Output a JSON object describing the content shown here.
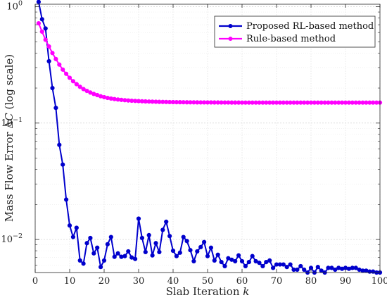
{
  "chart_data": {
    "type": "line",
    "xlabel": "Slab Iteration k",
    "xlabel_parts": {
      "prefix": "Slab Iteration ",
      "var": "k"
    },
    "ylabel": "Mass Flow Error ΔC (log scale)",
    "ylabel_parts": {
      "prefix": "Mass Flow Error ",
      "delta": "Δ",
      "var": "C",
      "suffix": " (log scale)"
    },
    "xlim": [
      0,
      100
    ],
    "ylim": [
      0.0052,
      1.05
    ],
    "yscale": "log",
    "grid": true,
    "legend_position": "top-right",
    "x_ticks": [
      "0",
      "10",
      "20",
      "30",
      "40",
      "50",
      "60",
      "70",
      "80",
      "90",
      "100"
    ],
    "y_ticks": [
      {
        "value": 0.01,
        "base": "10",
        "exp": "−2"
      },
      {
        "value": 0.1,
        "base": "10",
        "exp": "−1"
      },
      {
        "value": 1,
        "base": "10",
        "exp": "0"
      }
    ],
    "x": [
      1,
      2,
      3,
      4,
      5,
      6,
      7,
      8,
      9,
      10,
      11,
      12,
      13,
      14,
      15,
      16,
      17,
      18,
      19,
      20,
      21,
      22,
      23,
      24,
      25,
      26,
      27,
      28,
      29,
      30,
      31,
      32,
      33,
      34,
      35,
      36,
      37,
      38,
      39,
      40,
      41,
      42,
      43,
      44,
      45,
      46,
      47,
      48,
      49,
      50,
      51,
      52,
      53,
      54,
      55,
      56,
      57,
      58,
      59,
      60,
      61,
      62,
      63,
      64,
      65,
      66,
      67,
      68,
      69,
      70,
      71,
      72,
      73,
      74,
      75,
      76,
      77,
      78,
      79,
      80,
      81,
      82,
      83,
      84,
      85,
      86,
      87,
      88,
      89,
      90,
      91,
      92,
      93,
      94,
      95,
      96,
      97,
      98,
      99,
      100
    ],
    "series": [
      {
        "name": "Proposed RL-based method",
        "color": "#0000cc",
        "values": [
          1.1,
          0.78,
          0.65,
          0.34,
          0.2,
          0.135,
          0.065,
          0.044,
          0.022,
          0.0132,
          0.0105,
          0.0126,
          0.0066,
          0.0062,
          0.0093,
          0.0103,
          0.0076,
          0.0085,
          0.0058,
          0.0066,
          0.0091,
          0.0105,
          0.0071,
          0.0076,
          0.0071,
          0.0072,
          0.0079,
          0.007,
          0.0068,
          0.0151,
          0.0103,
          0.0078,
          0.0109,
          0.0073,
          0.0093,
          0.0078,
          0.0121,
          0.0142,
          0.0107,
          0.008,
          0.0072,
          0.0077,
          0.0105,
          0.0097,
          0.0081,
          0.0065,
          0.0079,
          0.0086,
          0.0095,
          0.0072,
          0.0085,
          0.0066,
          0.0074,
          0.0064,
          0.0059,
          0.0069,
          0.0067,
          0.0065,
          0.0073,
          0.0065,
          0.0059,
          0.0064,
          0.0072,
          0.0065,
          0.0063,
          0.0059,
          0.0064,
          0.0066,
          0.0057,
          0.0061,
          0.0061,
          0.0061,
          0.0058,
          0.0061,
          0.0055,
          0.0055,
          0.0059,
          0.0055,
          0.0052,
          0.0057,
          0.0052,
          0.0058,
          0.0054,
          0.0052,
          0.0057,
          0.0057,
          0.0055,
          0.0057,
          0.0056,
          0.0057,
          0.0056,
          0.0057,
          0.0057,
          0.0055,
          0.0054,
          0.0054,
          0.0053,
          0.0053,
          0.0052,
          0.0052
        ]
      },
      {
        "name": "Rule-based method",
        "color": "#ff00ff",
        "values": [
          0.72,
          0.61,
          0.52,
          0.455,
          0.4,
          0.355,
          0.318,
          0.288,
          0.265,
          0.245,
          0.229,
          0.216,
          0.205,
          0.196,
          0.189,
          0.183,
          0.178,
          0.174,
          0.17,
          0.167,
          0.1645,
          0.1625,
          0.1608,
          0.1594,
          0.1582,
          0.1572,
          0.1563,
          0.1556,
          0.155,
          0.1545,
          0.154,
          0.1535,
          0.1531,
          0.1528,
          0.1525,
          0.1522,
          0.152,
          0.1518,
          0.1516,
          0.1514,
          0.1512,
          0.1511,
          0.151,
          0.1509,
          0.1508,
          0.1507,
          0.1506,
          0.1505,
          0.1505,
          0.1504,
          0.1504,
          0.1503,
          0.1503,
          0.1502,
          0.1502,
          0.1502,
          0.1501,
          0.1501,
          0.1501,
          0.15,
          0.15,
          0.15,
          0.15,
          0.15,
          0.15,
          0.15,
          0.15,
          0.15,
          0.15,
          0.15,
          0.15,
          0.15,
          0.15,
          0.15,
          0.15,
          0.15,
          0.15,
          0.15,
          0.15,
          0.15,
          0.15,
          0.15,
          0.15,
          0.15,
          0.15,
          0.15,
          0.15,
          0.15,
          0.15,
          0.15,
          0.15,
          0.15,
          0.15,
          0.15,
          0.15,
          0.15,
          0.15,
          0.15,
          0.15,
          0.15
        ]
      }
    ]
  }
}
